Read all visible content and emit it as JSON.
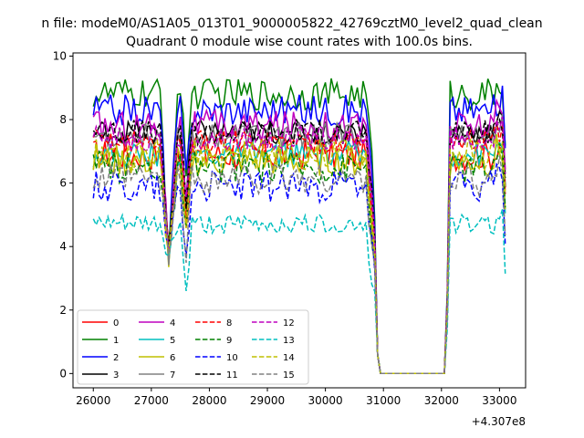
{
  "figure": {
    "suptitle": "n file: modeM0/AS1A05_013T01_9000005822_42769cztM0_level2_quad_clean",
    "title": "Quadrant 0 module wise count rates with 100.0s bins.",
    "offset_label": "+4.307e8"
  },
  "chart_data": {
    "type": "line",
    "title": "Quadrant 0 module wise count rates with 100.0s bins.",
    "x_offset_label": "+4.307e8",
    "xlim": [
      25650,
      33450
    ],
    "ylim": [
      -0.45,
      10.1
    ],
    "xticks": [
      26000,
      27000,
      28000,
      29000,
      30000,
      31000,
      32000,
      33000
    ],
    "yticks": [
      0,
      2,
      4,
      6,
      8,
      10
    ],
    "grid": false,
    "legend_location": "lower left",
    "legend_columns": 4,
    "series": [
      {
        "name": "0",
        "color": "#ff0000",
        "dash": "solid",
        "level": 6.9,
        "amp": 0.5
      },
      {
        "name": "1",
        "color": "#008000",
        "dash": "solid",
        "level": 8.8,
        "amp": 0.5
      },
      {
        "name": "2",
        "color": "#0000ff",
        "dash": "solid",
        "level": 8.3,
        "amp": 0.5
      },
      {
        "name": "3",
        "color": "#000000",
        "dash": "solid",
        "level": 7.6,
        "amp": 0.4
      },
      {
        "name": "4",
        "color": "#bf00bf",
        "dash": "solid",
        "level": 7.8,
        "amp": 0.5
      },
      {
        "name": "5",
        "color": "#00bfbf",
        "dash": "solid",
        "level": 6.9,
        "amp": 0.4
      },
      {
        "name": "6",
        "color": "#bfbf00",
        "dash": "solid",
        "level": 6.7,
        "amp": 0.5
      },
      {
        "name": "7",
        "color": "#808080",
        "dash": "solid",
        "level": 7.5,
        "amp": 0.4
      },
      {
        "name": "8",
        "color": "#ff0000",
        "dash": "dashed",
        "level": 7.3,
        "amp": 0.4
      },
      {
        "name": "9",
        "color": "#008000",
        "dash": "dashed",
        "level": 6.5,
        "amp": 0.5
      },
      {
        "name": "10",
        "color": "#0000ff",
        "dash": "dashed",
        "level": 5.9,
        "amp": 0.5
      },
      {
        "name": "11",
        "color": "#000000",
        "dash": "dashed",
        "level": 7.6,
        "amp": 0.4
      },
      {
        "name": "12",
        "color": "#bf00bf",
        "dash": "dashed",
        "level": 7.4,
        "amp": 0.4
      },
      {
        "name": "13",
        "color": "#00bfbf",
        "dash": "dashed",
        "level": 4.7,
        "amp": 0.3
      },
      {
        "name": "14",
        "color": "#bfbf00",
        "dash": "dashed",
        "level": 6.9,
        "amp": 0.5
      },
      {
        "name": "15",
        "color": "#808080",
        "dash": "dashed",
        "level": 6.1,
        "amp": 0.5
      }
    ]
  }
}
